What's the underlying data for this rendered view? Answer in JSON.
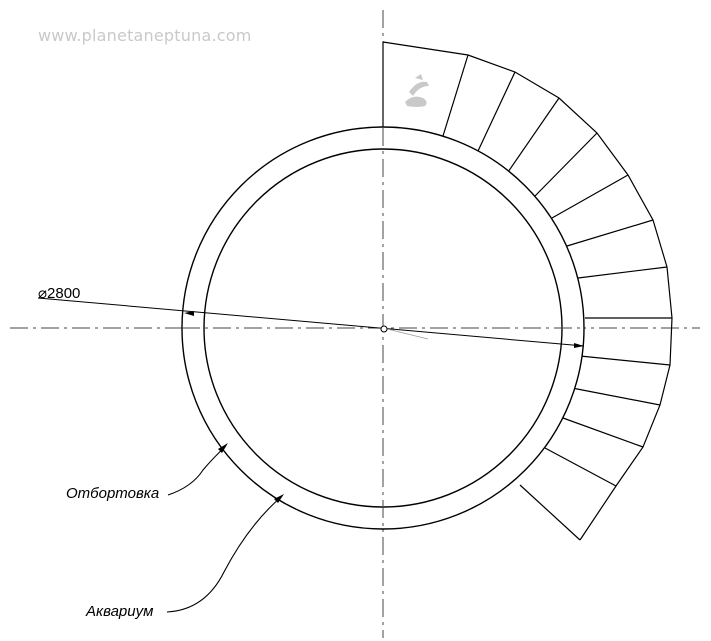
{
  "watermark": {
    "text": "www.planetaneptuna.com"
  },
  "dimension": {
    "label": "⌀2800"
  },
  "labels": {
    "otbortovka": "Отбортовка",
    "akvarium": "Аквариум"
  },
  "colors": {
    "line": "#000000",
    "centerline": "#444444",
    "watermark": "#c9c9c9"
  },
  "logo": {
    "name": "watermark-logo"
  }
}
